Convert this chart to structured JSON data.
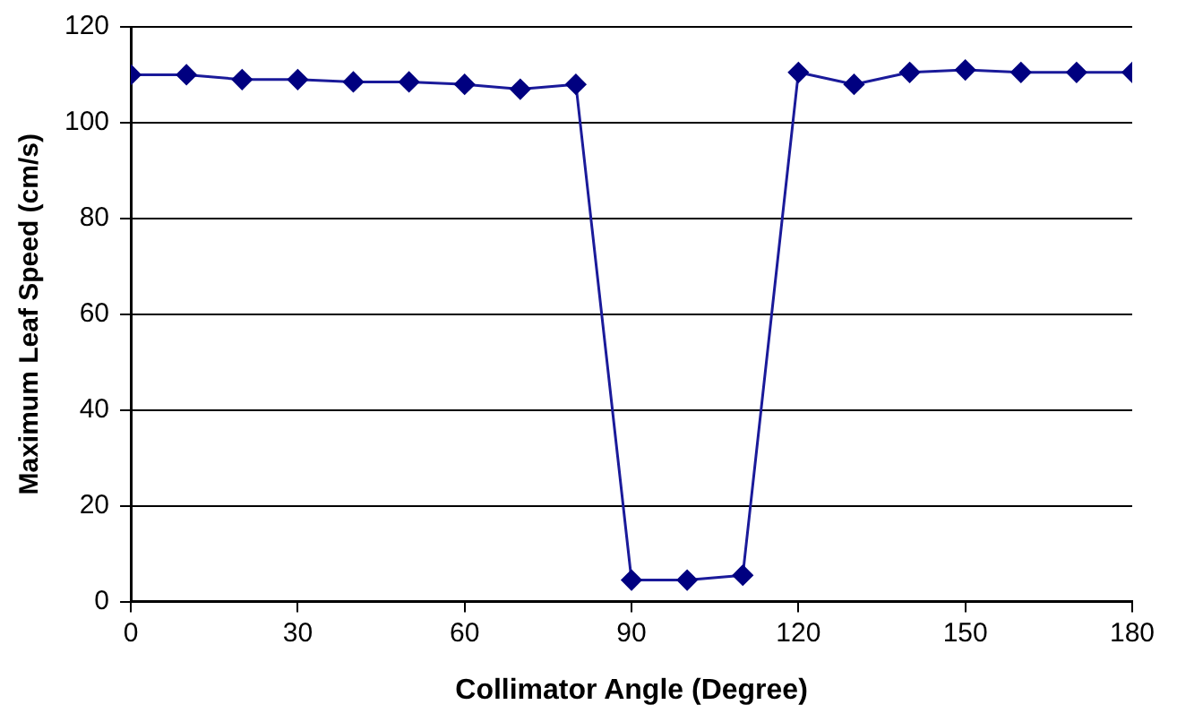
{
  "chart_data": {
    "type": "line",
    "xlabel": "Collimator Angle (Degree)",
    "ylabel": "Maximum Leaf Speed (cm/s)",
    "x": [
      0,
      10,
      20,
      30,
      40,
      50,
      60,
      70,
      80,
      90,
      100,
      110,
      120,
      130,
      140,
      150,
      160,
      170,
      180
    ],
    "series": [
      {
        "color": "#1a1a9a",
        "values": [
          110,
          110,
          109,
          109,
          108.5,
          108.5,
          108,
          107,
          108,
          4.5,
          4.5,
          5.5,
          110.5,
          108,
          110.5,
          111,
          110.5,
          110.5,
          110.5
        ]
      }
    ],
    "xlim": [
      0,
      180
    ],
    "xticks": [
      0,
      30,
      60,
      90,
      120,
      150,
      180
    ],
    "ylim": [
      0,
      120
    ],
    "yticks": [
      0,
      20,
      40,
      60,
      80,
      100,
      120
    ],
    "grid": "y",
    "legend": false,
    "marker": "diamond",
    "line_style": "solid"
  }
}
